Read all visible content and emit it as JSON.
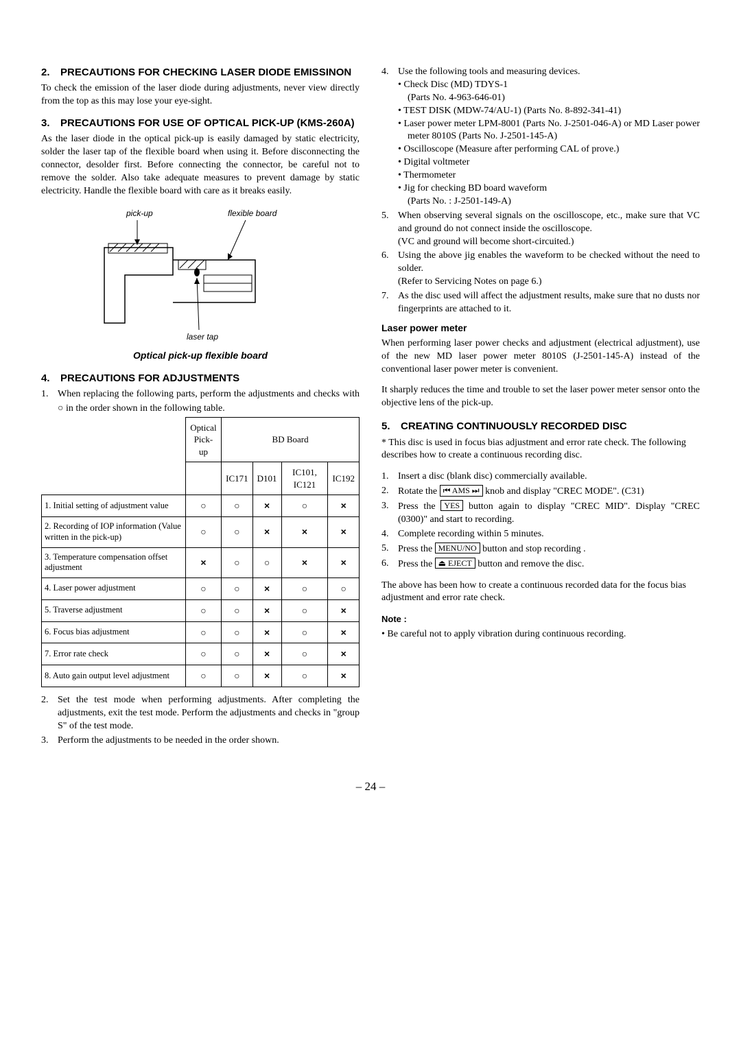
{
  "left": {
    "h2": {
      "num": "2.",
      "txt": "PRECAUTIONS FOR CHECKING LASER DIODE EMISSINON"
    },
    "p2": "To check the emission of the laser diode during adjustments, never view directly from the top as this may lose your eye-sight.",
    "h3": {
      "num": "3.",
      "txt": "PRECAUTIONS FOR USE OF OPTICAL PICK-UP (KMS-260A)"
    },
    "p3": "As the laser diode in the optical pick-up is easily damaged by static electricity, solder the laser tap of the flexible board when using it. Before disconnecting the connector, desolder first. Before connecting the connector, be careful not to remove the solder. Also take adequate measures to prevent damage by static electricity. Handle the flexible board with care as it breaks easily.",
    "diag": {
      "pickup": "pick-up",
      "flex": "flexible board",
      "tap": "laser tap",
      "caption": "Optical pick-up flexible board"
    },
    "h4": {
      "num": "4.",
      "txt": "PRECAUTIONS FOR ADJUSTMENTS"
    },
    "p4_1a": "When replacing the following parts, perform the adjustments and checks with ",
    "p4_1b": " in the order shown in the following table.",
    "table": {
      "hdr": {
        "optical": "Optical",
        "pickup": "Pick-up",
        "bd": "BD Board",
        "c1": "IC171",
        "c2": "D101",
        "c3": "IC101, IC121",
        "c4": "IC192"
      },
      "rows": [
        {
          "label": "1. Initial setting of adjustment value",
          "v": [
            "○",
            "○",
            "×",
            "○",
            "×"
          ]
        },
        {
          "label": "2. Recording of IOP information (Value written in the pick-up)",
          "v": [
            "○",
            "○",
            "×",
            "×",
            "×"
          ]
        },
        {
          "label": "3. Temperature compensation offset adjustment",
          "v": [
            "×",
            "○",
            "○",
            "×",
            "×"
          ]
        },
        {
          "label": "4. Laser power adjustment",
          "v": [
            "○",
            "○",
            "×",
            "○",
            "○"
          ]
        },
        {
          "label": "5. Traverse adjustment",
          "v": [
            "○",
            "○",
            "×",
            "○",
            "×"
          ]
        },
        {
          "label": "6. Focus bias adjustment",
          "v": [
            "○",
            "○",
            "×",
            "○",
            "×"
          ]
        },
        {
          "label": "7. Error rate check",
          "v": [
            "○",
            "○",
            "×",
            "○",
            "×"
          ]
        },
        {
          "label": "8. Auto gain output level adjustment",
          "v": [
            "○",
            "○",
            "×",
            "○",
            "×"
          ]
        }
      ]
    },
    "p4_2": "Set the test mode when performing adjustments. After completing the adjustments, exit the test mode. Perform the adjustments and checks in \"group S\" of the test mode.",
    "p4_3": "Perform the adjustments to be needed in the order shown."
  },
  "right": {
    "l4": "Use the following tools and measuring devices.",
    "tools": [
      "Check Disc (MD) TDYS-1\n(Parts No. 4-963-646-01)",
      "TEST DISK (MDW-74/AU-1) (Parts No. 8-892-341-41)",
      "Laser power meter LPM-8001 (Parts No. J-2501-046-A) or MD Laser power meter 8010S (Parts No. J-2501-145-A)",
      "Oscilloscope (Measure after performing CAL of prove.)",
      "Digital voltmeter",
      "Thermometer",
      "Jig for checking BD board waveform\n(Parts No. : J-2501-149-A)"
    ],
    "l5a": "When observing several signals on the oscilloscope, etc., make sure that VC and ground do not connect inside the oscilloscope.",
    "l5b": "(VC and ground will become short-circuited.)",
    "l6a": "Using the above jig enables the waveform to be checked without the need to solder.",
    "l6b": "(Refer to Servicing Notes on page 6.)",
    "l7": "As the disc used will affect the adjustment results, make sure that no dusts nor fingerprints are attached to it.",
    "lpm_h": "Laser power meter",
    "lpm_p1": "When performing laser power checks and adjustment (electrical adjustment), use of the new MD laser power meter 8010S (J-2501-145-A) instead of the conventional laser power meter is convenient.",
    "lpm_p2": "It sharply reduces the time and trouble to set the laser power meter sensor onto the objective lens of the pick-up.",
    "h5": {
      "num": "5.",
      "txt": "CREATING CONTINUOUSLY RECORDED DISC"
    },
    "p5_star": "* This disc is used in focus bias adjustment and error rate check. The following describes how to create a continuous recording disc.",
    "s1": "Insert a disc (blank disc) commercially available.",
    "s2a": "Rotate the ",
    "s2box": "⏮ AMS ⏭",
    "s2b": " knob and display \"CREC MODE\". (C31)",
    "s3a": "Press the ",
    "s3box": "YES",
    "s3b": " button again to display \"CREC MID\". Display \"CREC (0300)\" and start to recording.",
    "s4": "Complete recording within 5 minutes.",
    "s5a": "Press the ",
    "s5box": "MENU/NO",
    "s5b": " button and stop recording .",
    "s6a": "Press the ",
    "s6box": "⏏ EJECT",
    "s6b": " button and remove the disc.",
    "p5_after": "The above has been how to create a continuous recorded data for the focus bias adjustment and error rate check.",
    "note_h": "Note :",
    "note": "Be careful not to apply vibration during continuous recording."
  },
  "page": "– 24 –"
}
